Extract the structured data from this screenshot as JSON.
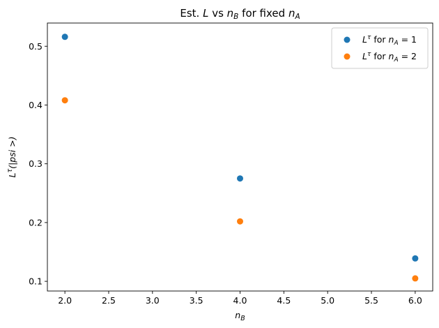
{
  "chart_data": {
    "type": "scatter",
    "title": {
      "pre": "Est. ",
      "L": "L",
      "mid": " vs ",
      "n": "n",
      "nsub": "B",
      "mid2": " for fixed ",
      "n2": "n",
      "n2sub": "A"
    },
    "xlabel": {
      "main": "n",
      "sub": "B"
    },
    "ylabel": {
      "pre": "L",
      "sup": "τ",
      "post": "(|psi >)"
    },
    "xlim": [
      1.8,
      6.2
    ],
    "ylim": [
      0.0835,
      0.5395
    ],
    "xticks": [
      2.0,
      2.5,
      3.0,
      3.5,
      4.0,
      4.5,
      5.0,
      5.5,
      6.0
    ],
    "xtick_labels": [
      "2.0",
      "2.5",
      "3.0",
      "3.5",
      "4.0",
      "4.5",
      "5.0",
      "5.5",
      "6.0"
    ],
    "yticks": [
      0.1,
      0.2,
      0.3,
      0.4,
      0.5
    ],
    "ytick_labels": [
      "0.1",
      "0.2",
      "0.3",
      "0.4",
      "0.5"
    ],
    "grid": false,
    "legend_position": "top-right",
    "series": [
      {
        "name": "L^τ for n_A = 1",
        "legend": {
          "L": "L",
          "sup": "τ",
          "for": " for ",
          "n": "n",
          "sub": "A",
          "eq": " = 1"
        },
        "color": "#1f77b4",
        "x": [
          2,
          4,
          6
        ],
        "y": [
          0.516,
          0.275,
          0.139
        ]
      },
      {
        "name": "L^τ for n_A = 2",
        "legend": {
          "L": "L",
          "sup": "τ",
          "for": " for ",
          "n": "n",
          "sub": "A",
          "eq": " = 2"
        },
        "color": "#ff7f0e",
        "x": [
          2,
          4,
          6
        ],
        "y": [
          0.408,
          0.202,
          0.105
        ]
      }
    ]
  }
}
